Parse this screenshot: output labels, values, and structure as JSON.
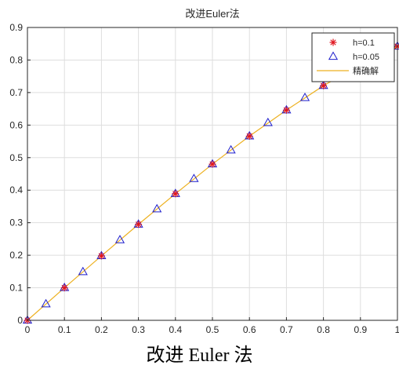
{
  "caption": "改进 Euler 法",
  "chart_data": {
    "type": "line",
    "title": "改进Euler法",
    "xlabel": "",
    "ylabel": "",
    "xlim": [
      0,
      1
    ],
    "ylim": [
      0,
      0.9
    ],
    "xticks": [
      "0",
      "0.1",
      "0.2",
      "0.3",
      "0.4",
      "0.5",
      "0.6",
      "0.7",
      "0.8",
      "0.9",
      "1"
    ],
    "yticks": [
      "0",
      "0.1",
      "0.2",
      "0.3",
      "0.4",
      "0.5",
      "0.6",
      "0.7",
      "0.8",
      "0.9"
    ],
    "grid": true,
    "legend_position": "top-right",
    "series": [
      {
        "name": "h=0.1",
        "marker": "asterisk",
        "color": "#e0141e",
        "x": [
          0,
          0.1,
          0.2,
          0.3,
          0.4,
          0.5,
          0.6,
          0.7,
          0.8,
          0.9,
          1.0
        ],
        "y": [
          0,
          0.1,
          0.198,
          0.295,
          0.389,
          0.48,
          0.566,
          0.646,
          0.721,
          0.786,
          0.842
        ]
      },
      {
        "name": "h=0.05",
        "marker": "triangle",
        "color": "#1e1ecc",
        "x": [
          0,
          0.05,
          0.1,
          0.15,
          0.2,
          0.25,
          0.3,
          0.35,
          0.4,
          0.45,
          0.5,
          0.55,
          0.6,
          0.65,
          0.7,
          0.75,
          0.8,
          0.85,
          0.9,
          0.95,
          1.0
        ],
        "y": [
          0,
          0.05,
          0.1,
          0.149,
          0.198,
          0.247,
          0.295,
          0.342,
          0.389,
          0.435,
          0.48,
          0.523,
          0.566,
          0.607,
          0.646,
          0.684,
          0.721,
          0.754,
          0.786,
          0.815,
          0.842
        ]
      },
      {
        "name": "精确解",
        "marker": "none",
        "line": true,
        "color": "#edb120",
        "x": [
          0,
          0.1,
          0.2,
          0.3,
          0.4,
          0.5,
          0.6,
          0.7,
          0.8,
          0.9,
          1.0
        ],
        "y": [
          0,
          0.1,
          0.198,
          0.295,
          0.389,
          0.48,
          0.566,
          0.646,
          0.721,
          0.786,
          0.842
        ]
      }
    ]
  }
}
